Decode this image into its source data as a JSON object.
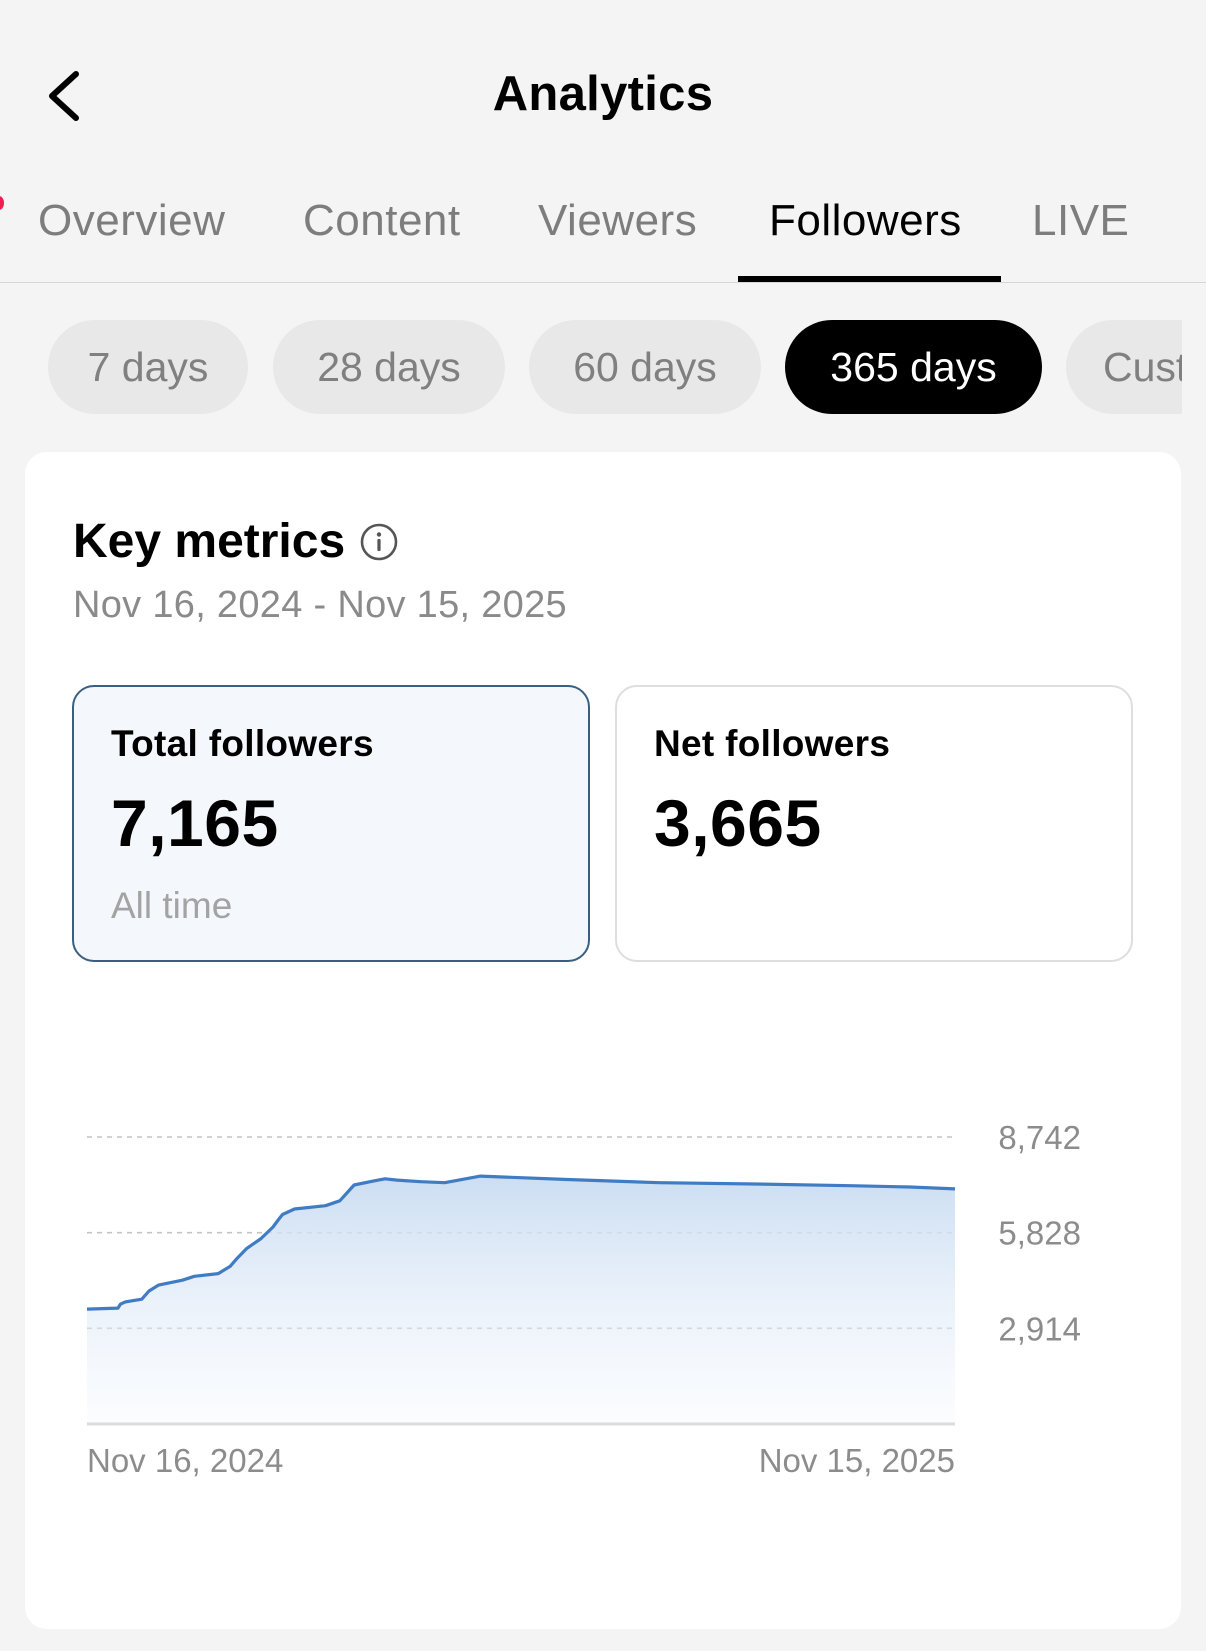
{
  "header": {
    "title": "Analytics"
  },
  "tabs": [
    {
      "label": "Overview",
      "active": false
    },
    {
      "label": "Content",
      "active": false
    },
    {
      "label": "Viewers",
      "active": false
    },
    {
      "label": "Followers",
      "active": true
    },
    {
      "label": "LIVE",
      "active": false
    }
  ],
  "ranges": [
    {
      "label": "7 days",
      "active": false
    },
    {
      "label": "28 days",
      "active": false
    },
    {
      "label": "60 days",
      "active": false
    },
    {
      "label": "365 days",
      "active": true
    },
    {
      "label": "Cust",
      "active": false
    }
  ],
  "key_metrics": {
    "title": "Key metrics",
    "date_range": "Nov 16, 2024 - Nov 15, 2025",
    "total": {
      "label": "Total followers",
      "value": "7,165",
      "sub": "All time",
      "selected": true
    },
    "net": {
      "label": "Net followers",
      "value": "3,665",
      "selected": false
    }
  },
  "colors": {
    "accent_line": "#3f7cc4",
    "fill_top": "#c9dcf2",
    "selected_border": "#3a5f82",
    "notification": "#ee1d52"
  },
  "chart_data": {
    "type": "area",
    "title": "",
    "xlabel": "",
    "ylabel": "",
    "x_ticks": [
      "Nov 16, 2024",
      "Nov 15, 2025"
    ],
    "y_ticks": [
      "2,914",
      "5,828",
      "8,742"
    ],
    "ylim": [
      0,
      8742
    ],
    "y_tick_values": [
      2914,
      5828,
      8742
    ],
    "grid": true,
    "y_axis_side": "right",
    "series": [
      {
        "x": [
          0,
          13,
          14,
          16,
          23,
          26,
          30,
          40,
          45,
          55,
          60,
          63,
          67,
          73,
          78,
          80,
          82,
          87,
          100,
          106,
          112,
          120,
          125,
          130,
          140,
          150,
          165,
          200,
          240,
          280,
          320,
          345,
          364
        ],
        "values": [
          3500,
          3530,
          3650,
          3720,
          3800,
          4050,
          4230,
          4380,
          4500,
          4580,
          4800,
          5050,
          5350,
          5650,
          6000,
          6200,
          6380,
          6550,
          6650,
          6800,
          7280,
          7400,
          7470,
          7430,
          7380,
          7350,
          7550,
          7450,
          7350,
          7310,
          7260,
          7220,
          7160
        ]
      }
    ]
  }
}
